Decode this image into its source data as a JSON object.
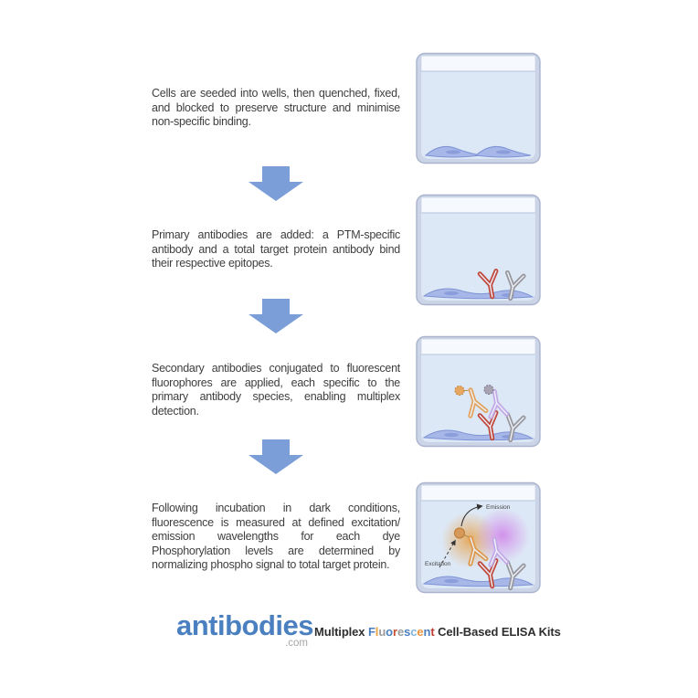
{
  "steps": [
    {
      "text": "Cells are seeded into wells, then quenched, fixed, and blocked to preserve structure and minimise non-specific binding."
    },
    {
      "text": "Primary antibodies are added: a PTM-specific antibody and a total target protein antibody bind their respective epitopes."
    },
    {
      "text": "Secondary antibodies conjugated to fluorescent fluorophores are applied, each specific to the primary antibody species, enabling multiplex detection."
    },
    {
      "text": "Following incubation in dark conditions, fluorescence is measured at defined excitation/ emission wavelengths for each dye Phosphorylation levels are determined by normalizing phospho signal to total target protein.",
      "labels": {
        "excitation": "Excitation",
        "emission": "Emission"
      }
    }
  ],
  "logo": {
    "name": "antibodies",
    "tld": ".com",
    "tagline_prefix": "Multiplex ",
    "tagline_suffix": " Cell-Based ELISA Kits",
    "fluorescent": [
      {
        "ch": "F",
        "color": "#4a7fc0"
      },
      {
        "ch": "l",
        "color": "#e8a33d"
      },
      {
        "ch": "u",
        "color": "#9b9b9b"
      },
      {
        "ch": "o",
        "color": "#4a7fc0"
      },
      {
        "ch": "r",
        "color": "#c8502e"
      },
      {
        "ch": "e",
        "color": "#9b9b9b"
      },
      {
        "ch": "s",
        "color": "#4a7fc0"
      },
      {
        "ch": "c",
        "color": "#85b3da"
      },
      {
        "ch": "e",
        "color": "#e8943c"
      },
      {
        "ch": "n",
        "color": "#4a7fc0"
      },
      {
        "ch": "t",
        "color": "#c03a2e"
      }
    ]
  },
  "colors": {
    "arrow_blue": "#7c9ed8",
    "brand_blue": "#4a7fc0",
    "primary_antibody_red": "#c04a3e",
    "primary_antibody_gray": "#98989e",
    "secondary_antibody_orange": "#e2a45f",
    "secondary_antibody_purple": "#c3a9e6",
    "well_wall": "#ccd5e7",
    "well_liquid": "#dde8f6",
    "cell_fill": "#a7b7e8"
  }
}
